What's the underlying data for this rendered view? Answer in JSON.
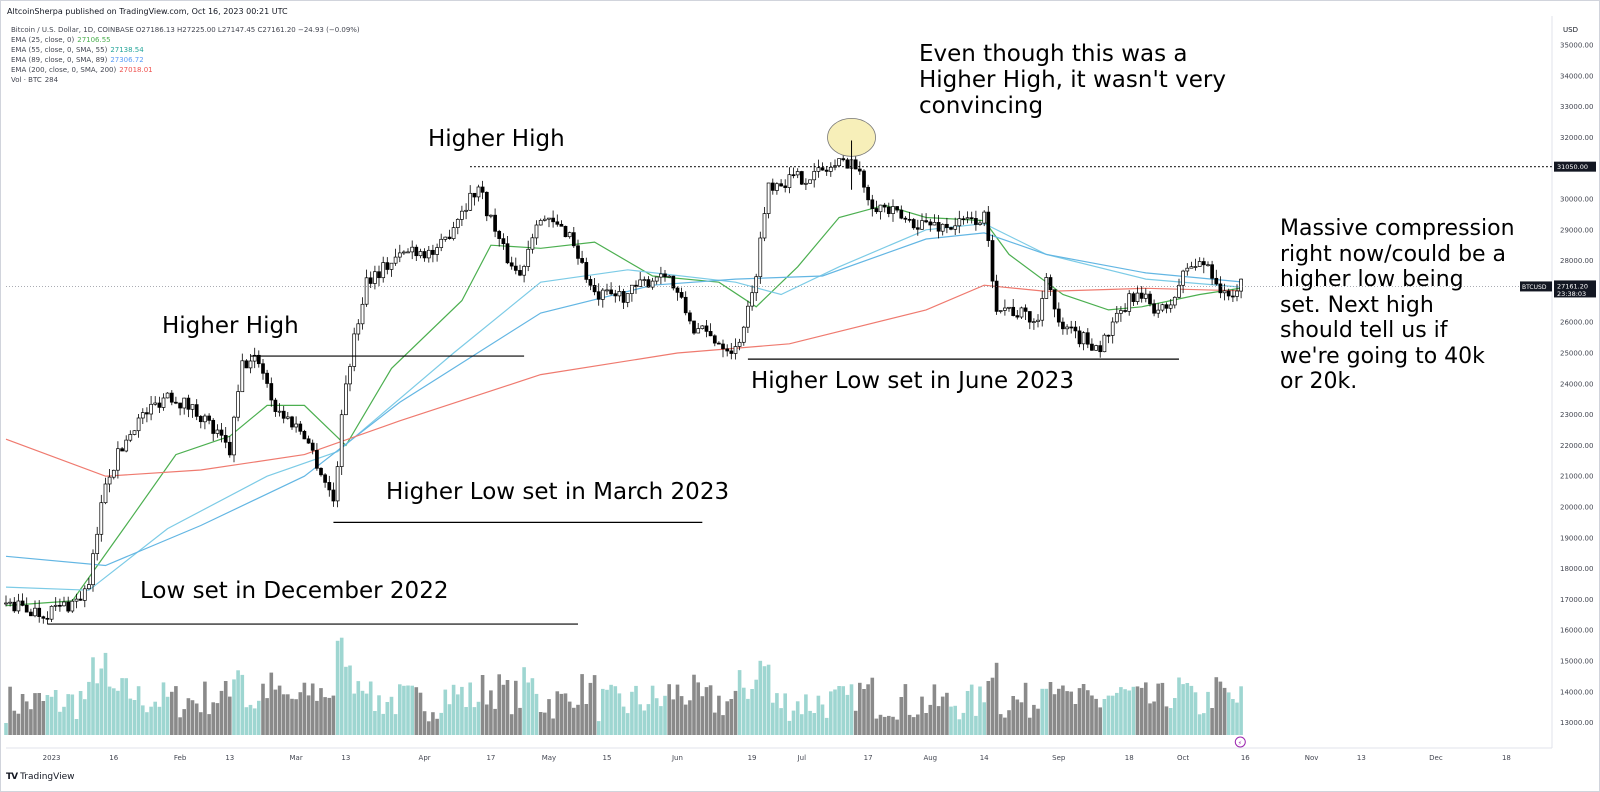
{
  "header": {
    "publisher_line": "AltcoinSherpa published on TradingView.com, Oct 16, 2023 00:21 UTC"
  },
  "legend": {
    "symbol_line": "Bitcoin / U.S. Dollar, 1D, COINBASE  O27186.13  H27225.00  L27147.45  C27161.20  −24.93 (−0.09%)",
    "indicators": [
      {
        "label": "EMA (25, close, 0)",
        "value": "27106.55",
        "color": "#4caf50"
      },
      {
        "label": "EMA (55, close, 0, SMA, 55)",
        "value": "27138.54",
        "color": "#26a69a"
      },
      {
        "label": "EMA (89, close, 0, SMA, 89)",
        "value": "27306.72",
        "color": "#5b9cf6"
      },
      {
        "label": "EMA (200, close, 0, SMA, 200)",
        "value": "27018.01",
        "color": "#ef5350"
      },
      {
        "label": "Vol · BTC",
        "value": "284",
        "color": "#434651"
      }
    ]
  },
  "price_axis": {
    "currency": "USD",
    "ticks": [
      "35000.00",
      "34000.00",
      "33000.00",
      "32000.00",
      "31000.00",
      "30000.00",
      "29000.00",
      "28000.00",
      "27000.00",
      "26000.00",
      "25000.00",
      "24000.00",
      "23000.00",
      "22000.00",
      "21000.00",
      "20000.00",
      "19000.00",
      "18000.00",
      "17000.00",
      "16000.00",
      "15000.00",
      "14000.00",
      "13000.00"
    ],
    "level_label": "31050.00",
    "last_price_symbol": "BTCUSD",
    "last_price": "27161.20",
    "countdown": "23:38:03"
  },
  "time_axis": {
    "ticks": [
      "2023",
      "16",
      "Feb",
      "13",
      "Mar",
      "13",
      "Apr",
      "17",
      "May",
      "15",
      "Jun",
      "19",
      "Jul",
      "17",
      "Aug",
      "14",
      "Sep",
      "18",
      "Oct",
      "16",
      "Nov",
      "13",
      "Dec",
      "18"
    ],
    "highlighted": "16"
  },
  "annotations": {
    "low_dec": "Low set in December 2022",
    "hh1": "Higher High",
    "hl_march": "Higher Low set in March 2023",
    "hh2": "Higher High",
    "hl_june": "Higher Low set in June 2023",
    "convincing": [
      "Even though this was a",
      "Higher High, it wasn't very",
      "convincing"
    ],
    "compression": [
      "Massive compression",
      "right now/could be a",
      "higher low being",
      "set. Next high",
      "should tell us if",
      "we're going to 40k",
      "or 20k."
    ]
  },
  "footer": {
    "brand_mark": "TV",
    "brand": "TradingView"
  },
  "colors": {
    "up_volume": "#9ed6d1",
    "down_volume": "#8a8a8a",
    "ema25": "#4caf50",
    "ema55": "#7ccbe6",
    "ema89": "#63b6e3",
    "ema200": "#ef7a6f",
    "candle": "#000000",
    "highlight_ellipse": "#f7efb9"
  },
  "chart_data": {
    "type": "candlestick",
    "title": "Bitcoin / U.S. Dollar, 1D, COINBASE",
    "ylim": [
      12400,
      35500
    ],
    "x_range": [
      "2022-12-21",
      "2023-12-29"
    ],
    "current_price": 27161.2,
    "horizontal_level": 31050,
    "price_path": [
      {
        "date": "2022-12-21",
        "close": 16850
      },
      {
        "date": "2022-12-30",
        "close": 16550
      },
      {
        "date": "2023-01-07",
        "close": 16950
      },
      {
        "date": "2023-01-10",
        "close": 17400
      },
      {
        "date": "2023-01-14",
        "close": 20900
      },
      {
        "date": "2023-01-21",
        "close": 22700
      },
      {
        "date": "2023-01-29",
        "close": 23700
      },
      {
        "date": "2023-02-06",
        "close": 23000
      },
      {
        "date": "2023-02-13",
        "close": 21800
      },
      {
        "date": "2023-02-16",
        "close": 24600
      },
      {
        "date": "2023-02-20",
        "close": 24800
      },
      {
        "date": "2023-02-24",
        "close": 23200
      },
      {
        "date": "2023-03-03",
        "close": 22400
      },
      {
        "date": "2023-03-10",
        "close": 20200
      },
      {
        "date": "2023-03-13",
        "close": 24100
      },
      {
        "date": "2023-03-18",
        "close": 27400
      },
      {
        "date": "2023-03-29",
        "close": 28400
      },
      {
        "date": "2023-04-04",
        "close": 28200
      },
      {
        "date": "2023-04-10",
        "close": 29700
      },
      {
        "date": "2023-04-14",
        "close": 30400
      },
      {
        "date": "2023-04-20",
        "close": 28300
      },
      {
        "date": "2023-04-24",
        "close": 27500
      },
      {
        "date": "2023-04-28",
        "close": 29400
      },
      {
        "date": "2023-05-06",
        "close": 28900
      },
      {
        "date": "2023-05-12",
        "close": 26800
      },
      {
        "date": "2023-05-20",
        "close": 26900
      },
      {
        "date": "2023-05-29",
        "close": 27700
      },
      {
        "date": "2023-06-05",
        "close": 25800
      },
      {
        "date": "2023-06-15",
        "close": 25100
      },
      {
        "date": "2023-06-19",
        "close": 26800
      },
      {
        "date": "2023-06-23",
        "close": 30500
      },
      {
        "date": "2023-07-04",
        "close": 30800
      },
      {
        "date": "2023-07-13",
        "close": 31300
      },
      {
        "date": "2023-07-18",
        "close": 29900
      },
      {
        "date": "2023-07-26",
        "close": 29300
      },
      {
        "date": "2023-08-05",
        "close": 29100
      },
      {
        "date": "2023-08-14",
        "close": 29400
      },
      {
        "date": "2023-08-17",
        "close": 26600
      },
      {
        "date": "2023-08-27",
        "close": 26000
      },
      {
        "date": "2023-08-29",
        "close": 27700
      },
      {
        "date": "2023-09-01",
        "close": 25800
      },
      {
        "date": "2023-09-11",
        "close": 25200
      },
      {
        "date": "2023-09-19",
        "close": 26900
      },
      {
        "date": "2023-09-27",
        "close": 26300
      },
      {
        "date": "2023-10-02",
        "close": 27800
      },
      {
        "date": "2023-10-07",
        "close": 27900
      },
      {
        "date": "2023-10-11",
        "close": 26800
      },
      {
        "date": "2023-10-15",
        "close": 27161
      }
    ],
    "indicators": [
      {
        "name": "EMA (25, close, 0)",
        "points": [
          {
            "date": "2022-12-21",
            "value": 16800
          },
          {
            "date": "2023-01-06",
            "value": 16950
          },
          {
            "date": "2023-01-20",
            "value": 19600
          },
          {
            "date": "2023-01-31",
            "value": 21700
          },
          {
            "date": "2023-02-13",
            "value": 22300
          },
          {
            "date": "2023-02-22",
            "value": 23300
          },
          {
            "date": "2023-03-03",
            "value": 23300
          },
          {
            "date": "2023-03-13",
            "value": 22000
          },
          {
            "date": "2023-03-24",
            "value": 24500
          },
          {
            "date": "2023-04-10",
            "value": 26700
          },
          {
            "date": "2023-04-17",
            "value": 28500
          },
          {
            "date": "2023-04-29",
            "value": 28400
          },
          {
            "date": "2023-05-12",
            "value": 28600
          },
          {
            "date": "2023-05-26",
            "value": 27500
          },
          {
            "date": "2023-06-11",
            "value": 27300
          },
          {
            "date": "2023-06-20",
            "value": 26500
          },
          {
            "date": "2023-06-30",
            "value": 27800
          },
          {
            "date": "2023-07-10",
            "value": 29400
          },
          {
            "date": "2023-07-21",
            "value": 29800
          },
          {
            "date": "2023-07-31",
            "value": 29400
          },
          {
            "date": "2023-08-14",
            "value": 29300
          },
          {
            "date": "2023-08-20",
            "value": 28200
          },
          {
            "date": "2023-09-02",
            "value": 26900
          },
          {
            "date": "2023-09-13",
            "value": 26400
          },
          {
            "date": "2023-09-21",
            "value": 26500
          },
          {
            "date": "2023-10-05",
            "value": 26900
          },
          {
            "date": "2023-10-15",
            "value": 27107
          }
        ]
      },
      {
        "name": "EMA (55, close, 0, SMA, 55)",
        "points": [
          {
            "date": "2022-12-21",
            "value": 17400
          },
          {
            "date": "2023-01-10",
            "value": 17300
          },
          {
            "date": "2023-01-29",
            "value": 19300
          },
          {
            "date": "2023-02-22",
            "value": 21000
          },
          {
            "date": "2023-03-11",
            "value": 21800
          },
          {
            "date": "2023-04-08",
            "value": 25000
          },
          {
            "date": "2023-04-29",
            "value": 27300
          },
          {
            "date": "2023-05-20",
            "value": 27700
          },
          {
            "date": "2023-06-15",
            "value": 27300
          },
          {
            "date": "2023-06-26",
            "value": 26900
          },
          {
            "date": "2023-07-10",
            "value": 27800
          },
          {
            "date": "2023-07-31",
            "value": 29000
          },
          {
            "date": "2023-08-14",
            "value": 29200
          },
          {
            "date": "2023-08-29",
            "value": 28200
          },
          {
            "date": "2023-09-22",
            "value": 27400
          },
          {
            "date": "2023-10-15",
            "value": 27139
          }
        ]
      },
      {
        "name": "EMA (89, close, 0, SMA, 89)",
        "points": [
          {
            "date": "2022-12-21",
            "value": 18400
          },
          {
            "date": "2023-01-14",
            "value": 18100
          },
          {
            "date": "2023-02-06",
            "value": 19400
          },
          {
            "date": "2023-03-03",
            "value": 21000
          },
          {
            "date": "2023-03-26",
            "value": 23400
          },
          {
            "date": "2023-04-29",
            "value": 26300
          },
          {
            "date": "2023-05-26",
            "value": 27200
          },
          {
            "date": "2023-06-15",
            "value": 27400
          },
          {
            "date": "2023-07-06",
            "value": 27500
          },
          {
            "date": "2023-07-31",
            "value": 28700
          },
          {
            "date": "2023-08-14",
            "value": 28900
          },
          {
            "date": "2023-08-29",
            "value": 28200
          },
          {
            "date": "2023-09-22",
            "value": 27600
          },
          {
            "date": "2023-10-15",
            "value": 27307
          }
        ]
      },
      {
        "name": "EMA (200, close, 0, SMA, 200)",
        "points": [
          {
            "date": "2022-12-21",
            "value": 22200
          },
          {
            "date": "2023-01-14",
            "value": 21000
          },
          {
            "date": "2023-02-06",
            "value": 21200
          },
          {
            "date": "2023-03-03",
            "value": 21700
          },
          {
            "date": "2023-03-26",
            "value": 22800
          },
          {
            "date": "2023-04-29",
            "value": 24300
          },
          {
            "date": "2023-06-01",
            "value": 25000
          },
          {
            "date": "2023-06-28",
            "value": 25300
          },
          {
            "date": "2023-07-31",
            "value": 26400
          },
          {
            "date": "2023-08-14",
            "value": 27200
          },
          {
            "date": "2023-08-29",
            "value": 27000
          },
          {
            "date": "2023-09-22",
            "value": 27100
          },
          {
            "date": "2023-10-15",
            "value": 27018
          }
        ]
      }
    ],
    "volume_note": "volume histogram at bottom of chart (BTC)"
  }
}
